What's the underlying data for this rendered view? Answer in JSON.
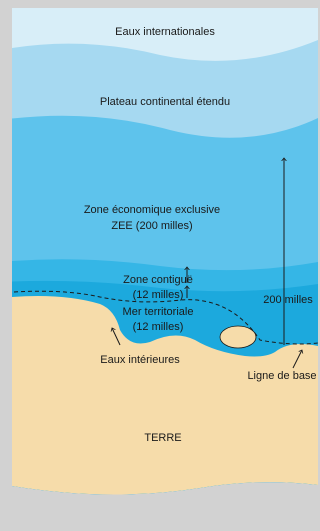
{
  "labels": {
    "international": "Eaux internationales",
    "plateau": "Plateau continental étendu",
    "zee_line1": "Zone économique exclusive",
    "zee_line2": "ZEE (200 milles)",
    "contiguous_line1": "Zone contiguë",
    "contiguous_line2": "(12 milles)",
    "territorial_line1": "Mer territoriale",
    "territorial_line2": "(12 milles)",
    "distance": "200 milles",
    "internal": "Eaux intérieures",
    "baseline": "Ligne de base",
    "land": "TERRE"
  }
}
